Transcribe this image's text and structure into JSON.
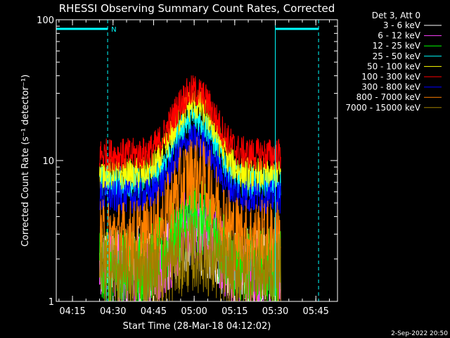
{
  "chart_data": {
    "type": "line",
    "title": "RHESSI Observing Summary Count Rates, Corrected",
    "xlabel": "Start Time (28-Mar-18 04:12:02)",
    "ylabel": "Corrected Count Rate (s⁻¹ detector⁻¹)",
    "footer_date": "2-Sep-2022 20:50",
    "legend_title": "Det 3, Att 0",
    "legend_position": "top-right outside",
    "xlim": [
      "04:09",
      "05:53"
    ],
    "x_tick_labels": [
      "04:15",
      "04:30",
      "04:45",
      "05:00",
      "05:15",
      "05:30",
      "05:45"
    ],
    "ylim": [
      1,
      100
    ],
    "yscale": "log",
    "y_tick_labels": [
      "1",
      "10",
      "100"
    ],
    "grid": false,
    "annotations": {
      "night_bar_label": "N",
      "night_intervals": [
        [
          "04:09",
          "04:28"
        ],
        [
          "05:30",
          "05:46"
        ]
      ]
    },
    "data_span": [
      "04:25",
      "05:32"
    ],
    "peak_time": "05:00",
    "series": [
      {
        "name": "3 - 6 keV",
        "color": "#ffffff",
        "baseline": 1.8,
        "peak": 3.0
      },
      {
        "name": "6 - 12 keV",
        "color": "#ff40ff",
        "baseline": 1.6,
        "peak": 3.5
      },
      {
        "name": "12 - 25 keV",
        "color": "#00ff00",
        "baseline": 1.8,
        "peak": 4.0
      },
      {
        "name": "25 - 50 keV",
        "color": "#00ffff",
        "baseline": 7.0,
        "peak": 20.0
      },
      {
        "name": "50 - 100 keV",
        "color": "#ffff00",
        "baseline": 8.0,
        "peak": 25.0
      },
      {
        "name": "100 - 300 keV",
        "color": "#ff0000",
        "baseline": 11.0,
        "peak": 31.0
      },
      {
        "name": "300 - 800 keV",
        "color": "#0000ff",
        "baseline": 5.5,
        "peak": 14.0
      },
      {
        "name": "800 - 7000 keV",
        "color": "#ff8000",
        "baseline": 2.8,
        "peak": 8.0
      },
      {
        "name": "7000 - 15000 keV",
        "color": "#a08000",
        "baseline": 1.6,
        "peak": 2.2
      }
    ]
  }
}
